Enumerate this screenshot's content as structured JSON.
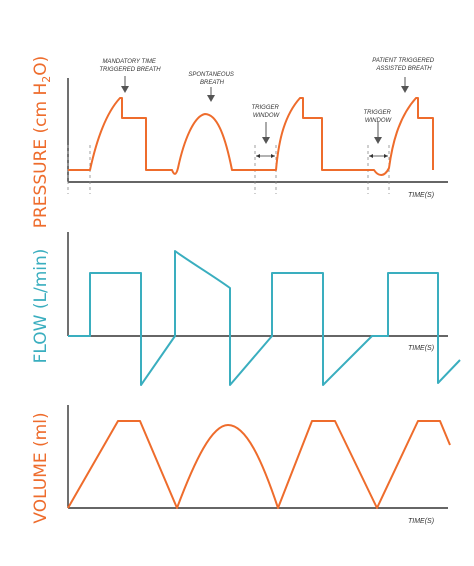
{
  "colors": {
    "pressure": "#ee6c2c",
    "flow": "#3aaebf",
    "volume": "#ee6c2c",
    "axis": "#333333",
    "guide": "#888888"
  },
  "pressure_panel": {
    "ylabel_main": "PRESSURE (cm H",
    "ylabel_sub": "2",
    "ylabel_end": "O)",
    "xlabel": "TIME(S)",
    "annotations": {
      "mandatory_line1": "MANDATORY TIME",
      "mandatory_line2": "TRIGGERED BREATH",
      "spontaneous_line1": "SPONTANEOUS",
      "spontaneous_line2": "BREATH",
      "trigger1_line1": "TRIGGER",
      "trigger1_line2": "WINDOW",
      "trigger2_line1": "TRIGGER",
      "trigger2_line2": "WINDOW",
      "patient_line1": "PATIENT TRIGGERED",
      "patient_line2": "ASSISTED BREATH"
    }
  },
  "flow_panel": {
    "ylabel": "FLOW (L/min)",
    "xlabel": "TIME(S)"
  },
  "volume_panel": {
    "ylabel": "VOLUME (ml)",
    "xlabel": "TIME(S)"
  }
}
